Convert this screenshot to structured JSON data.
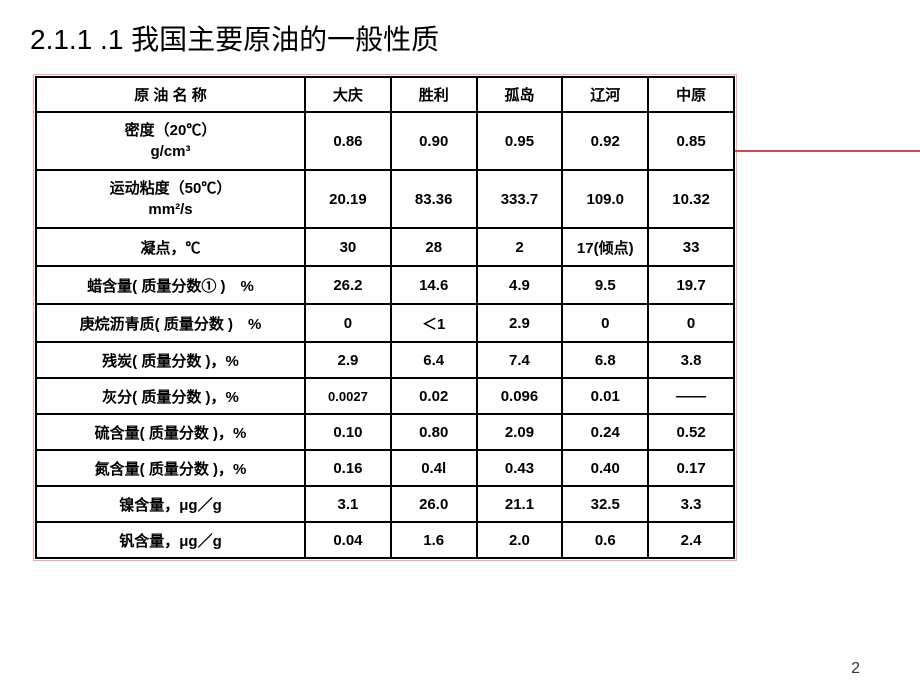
{
  "title": "2.1.1 .1  我国主要原油的一般性质",
  "page_number": "2",
  "table": {
    "columns": [
      "原 油 名 称",
      "大庆",
      "胜利",
      "孤岛",
      "辽河",
      "中原"
    ],
    "rows": [
      {
        "label_lines": [
          "密度（20℃）",
          "g/cm³"
        ],
        "values": [
          "0.86",
          "0.90",
          "0.95",
          "0.92",
          "0.85"
        ],
        "height": "tall"
      },
      {
        "label_lines": [
          "运动粘度（50℃）",
          "mm²/s"
        ],
        "values": [
          "20.19",
          "83.36",
          "333.7",
          "109.0",
          "10.32"
        ],
        "height": "tall"
      },
      {
        "label": "凝点，℃",
        "values": [
          "30",
          "28",
          "2",
          "17(倾点)",
          "33"
        ],
        "height": "med"
      },
      {
        "label": "蜡含量( 质量分数① )　%",
        "values": [
          "26.2",
          "14.6",
          "4.9",
          "9.5",
          "19.7"
        ],
        "height": "med"
      },
      {
        "label": "庚烷沥青质( 质量分数 )　%",
        "values": [
          "0",
          "＜1",
          "2.9",
          "0",
          "0"
        ],
        "height": "med"
      },
      {
        "label": "残炭( 质量分数 )，%",
        "values": [
          "2.9",
          "6.4",
          "7.4",
          "6.8",
          "3.8"
        ],
        "height": "short"
      },
      {
        "label": "灰分( 质量分数 )，%",
        "values": [
          "0.0027",
          "0.02",
          "0.096",
          "0.01",
          "——"
        ],
        "height": "short"
      },
      {
        "label": "硫含量( 质量分数 )，%",
        "values": [
          "0.10",
          "0.80",
          "2.09",
          "0.24",
          "0.52"
        ],
        "height": "short"
      },
      {
        "label": "氮含量( 质量分数 )，%",
        "values": [
          "0.16",
          "0.4l",
          "0.43",
          "0.40",
          "0.17"
        ],
        "height": "short"
      },
      {
        "label": "镍含量，μg／g",
        "values": [
          "3.1",
          "26.0",
          "21.1",
          "32.5",
          "3.3"
        ],
        "height": "short"
      },
      {
        "label": "钒含量，μg／g",
        "values": [
          "0.04",
          "1.6",
          "2.0",
          "0.6",
          "2.4"
        ],
        "height": "short"
      }
    ],
    "border_color": "#000000",
    "frame_color": "#f4a6a6",
    "accent_line_color": "#d94848"
  }
}
